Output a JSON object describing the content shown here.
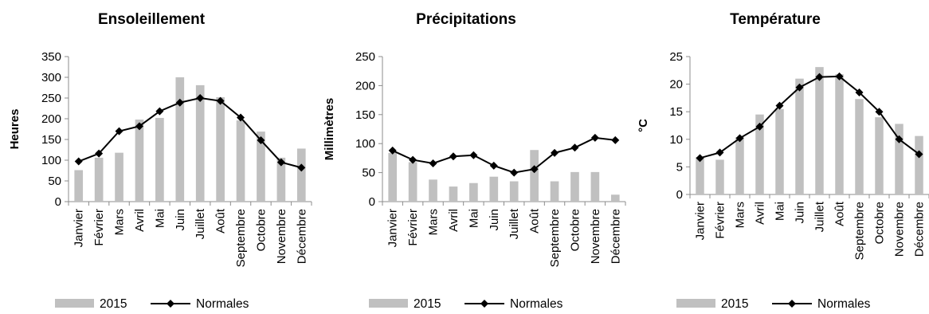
{
  "chart_data": [
    {
      "type": "bar",
      "title": "Ensoleillement",
      "ylabel": "Heures",
      "ylim": [
        0,
        350
      ],
      "yticks": [
        0,
        50,
        100,
        150,
        200,
        250,
        300,
        350
      ],
      "categories": [
        "Janvier",
        "Février",
        "Mars",
        "Avril",
        "Mai",
        "Juin",
        "Juillet",
        "Août",
        "Septembre",
        "Octobre",
        "Novembre",
        "Décembre"
      ],
      "series": [
        {
          "name": "2015",
          "type": "bar",
          "color": "#c0c0c0",
          "values": [
            76,
            106,
            118,
            198,
            202,
            300,
            281,
            252,
            196,
            169,
            106,
            128
          ]
        },
        {
          "name": "Normales",
          "type": "line",
          "color": "#000000",
          "marker": "diamond",
          "values": [
            97,
            116,
            170,
            182,
            218,
            239,
            250,
            243,
            203,
            148,
            95,
            82
          ]
        }
      ],
      "legend": "bottom"
    },
    {
      "type": "bar",
      "title": "Précipitations",
      "ylabel": "Millimètres",
      "ylim": [
        0,
        250
      ],
      "yticks": [
        0,
        50,
        100,
        150,
        200,
        250
      ],
      "categories": [
        "Janvier",
        "Février",
        "Mars",
        "Avril",
        "Mai",
        "Juin",
        "Juillet",
        "Août",
        "Septembre",
        "Octobre",
        "Novembre",
        "Décembre"
      ],
      "series": [
        {
          "name": "2015",
          "type": "bar",
          "color": "#c0c0c0",
          "values": [
            84,
            68,
            38,
            26,
            32,
            43,
            35,
            89,
            35,
            51,
            51,
            12
          ]
        },
        {
          "name": "Normales",
          "type": "line",
          "color": "#000000",
          "marker": "diamond",
          "values": [
            88,
            72,
            66,
            78,
            80,
            62,
            50,
            56,
            84,
            93,
            110,
            106
          ]
        }
      ],
      "legend": "bottom"
    },
    {
      "type": "bar",
      "title": "Température",
      "ylabel": "°C",
      "ylim": [
        0,
        25
      ],
      "yticks": [
        0,
        5,
        10,
        15,
        20,
        25
      ],
      "categories": [
        "Janvier",
        "Février",
        "Mars",
        "Avril",
        "Mai",
        "Juin",
        "Juillet",
        "Août",
        "Septembre",
        "Octobre",
        "Novembre",
        "Décembre"
      ],
      "series": [
        {
          "name": "2015",
          "type": "bar",
          "color": "#c0c0c0",
          "values": [
            6.8,
            6.3,
            10.4,
            14.5,
            15.5,
            21.0,
            23.1,
            21.8,
            17.3,
            14.0,
            12.8,
            10.6
          ]
        },
        {
          "name": "Normales",
          "type": "line",
          "color": "#000000",
          "marker": "diamond",
          "values": [
            6.6,
            7.6,
            10.2,
            12.3,
            16.1,
            19.4,
            21.3,
            21.4,
            18.5,
            15.0,
            10.0,
            7.3
          ]
        }
      ],
      "legend": "bottom"
    }
  ]
}
